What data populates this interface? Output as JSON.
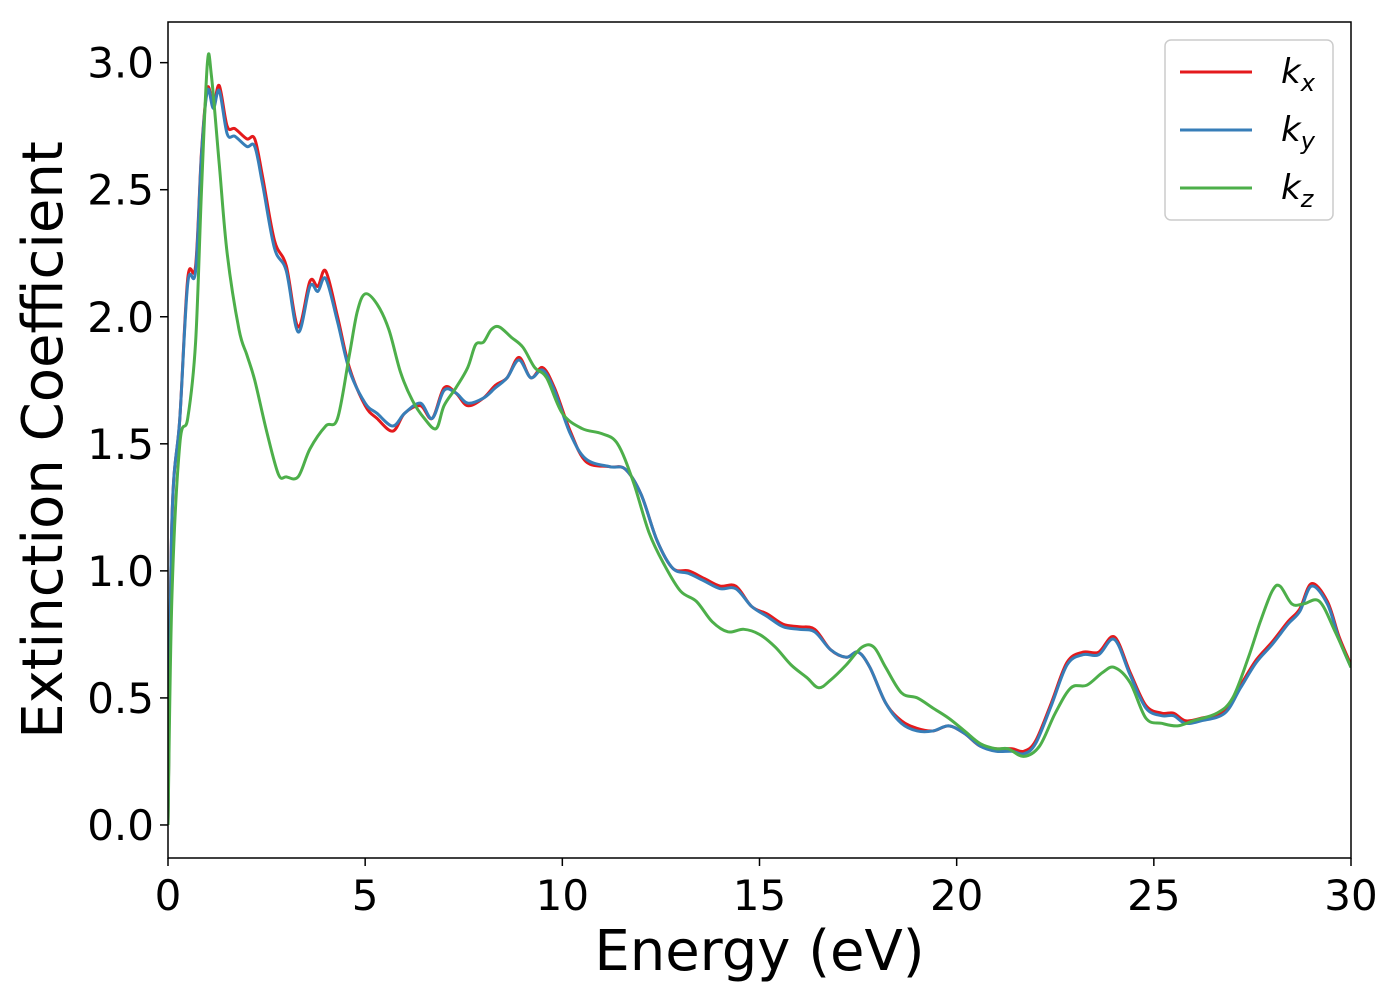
{
  "chart_data": {
    "type": "line",
    "title": "",
    "xlabel": "Energy (eV)",
    "ylabel": "Extinction Coefficient",
    "xlim": [
      0,
      30
    ],
    "ylim": [
      -0.13,
      3.16
    ],
    "xticks": [
      0,
      5,
      10,
      15,
      20,
      25,
      30
    ],
    "xtick_labels": [
      "0",
      "5",
      "10",
      "15",
      "20",
      "25",
      "30"
    ],
    "yticks": [
      0.0,
      0.5,
      1.0,
      1.5,
      2.0,
      2.5,
      3.0
    ],
    "ytick_labels": [
      "0.0",
      "0.5",
      "1.0",
      "1.5",
      "2.0",
      "2.5",
      "3.0"
    ],
    "grid": false,
    "legend_position": "top-right",
    "series": [
      {
        "name": "k",
        "subscript": "x",
        "color": "#e41a1c",
        "points": [
          [
            0,
            0
          ],
          [
            0.1,
            1.2
          ],
          [
            0.3,
            1.6
          ],
          [
            0.5,
            2.15
          ],
          [
            0.7,
            2.2
          ],
          [
            0.85,
            2.65
          ],
          [
            1.0,
            2.9
          ],
          [
            1.15,
            2.83
          ],
          [
            1.3,
            2.91
          ],
          [
            1.5,
            2.75
          ],
          [
            1.7,
            2.74
          ],
          [
            2.0,
            2.7
          ],
          [
            2.2,
            2.7
          ],
          [
            2.4,
            2.55
          ],
          [
            2.7,
            2.3
          ],
          [
            3.0,
            2.2
          ],
          [
            3.3,
            1.96
          ],
          [
            3.6,
            2.14
          ],
          [
            3.8,
            2.12
          ],
          [
            4.0,
            2.18
          ],
          [
            4.3,
            2.0
          ],
          [
            4.6,
            1.8
          ],
          [
            5.0,
            1.65
          ],
          [
            5.3,
            1.6
          ],
          [
            5.7,
            1.55
          ],
          [
            6.0,
            1.62
          ],
          [
            6.4,
            1.65
          ],
          [
            6.7,
            1.6
          ],
          [
            7.0,
            1.72
          ],
          [
            7.3,
            1.7
          ],
          [
            7.6,
            1.65
          ],
          [
            8.0,
            1.68
          ],
          [
            8.3,
            1.73
          ],
          [
            8.6,
            1.76
          ],
          [
            8.9,
            1.84
          ],
          [
            9.2,
            1.76
          ],
          [
            9.5,
            1.8
          ],
          [
            9.8,
            1.72
          ],
          [
            10.2,
            1.55
          ],
          [
            10.6,
            1.43
          ],
          [
            11.2,
            1.41
          ],
          [
            11.6,
            1.4
          ],
          [
            12.0,
            1.3
          ],
          [
            12.4,
            1.12
          ],
          [
            12.8,
            1.01
          ],
          [
            13.2,
            1.0
          ],
          [
            13.6,
            0.97
          ],
          [
            14.0,
            0.94
          ],
          [
            14.4,
            0.94
          ],
          [
            14.8,
            0.86
          ],
          [
            15.2,
            0.83
          ],
          [
            15.6,
            0.79
          ],
          [
            16.0,
            0.78
          ],
          [
            16.4,
            0.77
          ],
          [
            16.8,
            0.69
          ],
          [
            17.2,
            0.66
          ],
          [
            17.5,
            0.68
          ],
          [
            17.8,
            0.62
          ],
          [
            18.2,
            0.48
          ],
          [
            18.6,
            0.41
          ],
          [
            19.0,
            0.38
          ],
          [
            19.4,
            0.37
          ],
          [
            19.8,
            0.39
          ],
          [
            20.2,
            0.36
          ],
          [
            20.6,
            0.31
          ],
          [
            21.0,
            0.3
          ],
          [
            21.4,
            0.3
          ],
          [
            21.7,
            0.29
          ],
          [
            22.0,
            0.33
          ],
          [
            22.4,
            0.48
          ],
          [
            22.8,
            0.64
          ],
          [
            23.2,
            0.68
          ],
          [
            23.6,
            0.68
          ],
          [
            24.0,
            0.74
          ],
          [
            24.4,
            0.6
          ],
          [
            24.8,
            0.47
          ],
          [
            25.2,
            0.44
          ],
          [
            25.5,
            0.44
          ],
          [
            25.8,
            0.41
          ],
          [
            26.2,
            0.42
          ],
          [
            26.8,
            0.45
          ],
          [
            27.2,
            0.55
          ],
          [
            27.6,
            0.65
          ],
          [
            28.0,
            0.72
          ],
          [
            28.4,
            0.8
          ],
          [
            28.7,
            0.85
          ],
          [
            29.0,
            0.95
          ],
          [
            29.4,
            0.88
          ],
          [
            29.7,
            0.74
          ],
          [
            30.0,
            0.63
          ]
        ]
      },
      {
        "name": "k",
        "subscript": "y",
        "color": "#377eb8",
        "points": [
          [
            0,
            0
          ],
          [
            0.1,
            1.2
          ],
          [
            0.3,
            1.6
          ],
          [
            0.5,
            2.13
          ],
          [
            0.7,
            2.18
          ],
          [
            0.85,
            2.64
          ],
          [
            1.0,
            2.89
          ],
          [
            1.15,
            2.82
          ],
          [
            1.3,
            2.89
          ],
          [
            1.5,
            2.72
          ],
          [
            1.7,
            2.71
          ],
          [
            2.0,
            2.67
          ],
          [
            2.2,
            2.67
          ],
          [
            2.4,
            2.52
          ],
          [
            2.7,
            2.27
          ],
          [
            3.0,
            2.18
          ],
          [
            3.3,
            1.94
          ],
          [
            3.6,
            2.12
          ],
          [
            3.8,
            2.1
          ],
          [
            4.0,
            2.15
          ],
          [
            4.3,
            1.98
          ],
          [
            4.6,
            1.79
          ],
          [
            5.0,
            1.66
          ],
          [
            5.3,
            1.62
          ],
          [
            5.7,
            1.57
          ],
          [
            6.0,
            1.62
          ],
          [
            6.4,
            1.66
          ],
          [
            6.7,
            1.6
          ],
          [
            7.0,
            1.71
          ],
          [
            7.3,
            1.7
          ],
          [
            7.6,
            1.66
          ],
          [
            8.0,
            1.68
          ],
          [
            8.3,
            1.72
          ],
          [
            8.6,
            1.76
          ],
          [
            8.9,
            1.83
          ],
          [
            9.2,
            1.76
          ],
          [
            9.5,
            1.79
          ],
          [
            9.8,
            1.71
          ],
          [
            10.2,
            1.54
          ],
          [
            10.6,
            1.44
          ],
          [
            11.2,
            1.41
          ],
          [
            11.6,
            1.4
          ],
          [
            12.0,
            1.3
          ],
          [
            12.4,
            1.12
          ],
          [
            12.8,
            1.01
          ],
          [
            13.2,
            0.99
          ],
          [
            13.6,
            0.96
          ],
          [
            14.0,
            0.93
          ],
          [
            14.4,
            0.93
          ],
          [
            14.8,
            0.86
          ],
          [
            15.2,
            0.82
          ],
          [
            15.6,
            0.78
          ],
          [
            16.0,
            0.77
          ],
          [
            16.4,
            0.76
          ],
          [
            16.8,
            0.69
          ],
          [
            17.2,
            0.66
          ],
          [
            17.5,
            0.68
          ],
          [
            17.8,
            0.62
          ],
          [
            18.2,
            0.48
          ],
          [
            18.6,
            0.4
          ],
          [
            19.0,
            0.37
          ],
          [
            19.4,
            0.37
          ],
          [
            19.8,
            0.39
          ],
          [
            20.2,
            0.36
          ],
          [
            20.6,
            0.31
          ],
          [
            21.0,
            0.29
          ],
          [
            21.4,
            0.29
          ],
          [
            21.7,
            0.28
          ],
          [
            22.0,
            0.32
          ],
          [
            22.4,
            0.47
          ],
          [
            22.8,
            0.63
          ],
          [
            23.2,
            0.67
          ],
          [
            23.6,
            0.67
          ],
          [
            24.0,
            0.73
          ],
          [
            24.4,
            0.59
          ],
          [
            24.8,
            0.46
          ],
          [
            25.2,
            0.43
          ],
          [
            25.5,
            0.43
          ],
          [
            25.8,
            0.4
          ],
          [
            26.2,
            0.41
          ],
          [
            26.8,
            0.44
          ],
          [
            27.2,
            0.54
          ],
          [
            27.6,
            0.64
          ],
          [
            28.0,
            0.71
          ],
          [
            28.4,
            0.79
          ],
          [
            28.7,
            0.84
          ],
          [
            29.0,
            0.94
          ],
          [
            29.4,
            0.87
          ],
          [
            29.7,
            0.73
          ],
          [
            30.0,
            0.62
          ]
        ]
      },
      {
        "name": "k",
        "subscript": "z",
        "color": "#4daf4a",
        "points": [
          [
            0,
            0
          ],
          [
            0.1,
            0.9
          ],
          [
            0.3,
            1.5
          ],
          [
            0.5,
            1.6
          ],
          [
            0.7,
            1.9
          ],
          [
            0.85,
            2.5
          ],
          [
            1.0,
            3.0
          ],
          [
            1.1,
            2.95
          ],
          [
            1.3,
            2.6
          ],
          [
            1.5,
            2.25
          ],
          [
            1.8,
            1.95
          ],
          [
            2.0,
            1.85
          ],
          [
            2.2,
            1.75
          ],
          [
            2.5,
            1.55
          ],
          [
            2.8,
            1.38
          ],
          [
            3.0,
            1.37
          ],
          [
            3.3,
            1.37
          ],
          [
            3.6,
            1.48
          ],
          [
            4.0,
            1.57
          ],
          [
            4.3,
            1.6
          ],
          [
            4.6,
            1.85
          ],
          [
            4.8,
            2.02
          ],
          [
            5.0,
            2.09
          ],
          [
            5.3,
            2.05
          ],
          [
            5.6,
            1.95
          ],
          [
            5.9,
            1.78
          ],
          [
            6.2,
            1.67
          ],
          [
            6.5,
            1.6
          ],
          [
            6.8,
            1.56
          ],
          [
            7.0,
            1.65
          ],
          [
            7.3,
            1.72
          ],
          [
            7.6,
            1.8
          ],
          [
            7.8,
            1.89
          ],
          [
            8.0,
            1.9
          ],
          [
            8.2,
            1.95
          ],
          [
            8.4,
            1.96
          ],
          [
            8.7,
            1.92
          ],
          [
            9.0,
            1.88
          ],
          [
            9.3,
            1.8
          ],
          [
            9.6,
            1.76
          ],
          [
            10.0,
            1.62
          ],
          [
            10.5,
            1.56
          ],
          [
            11.0,
            1.54
          ],
          [
            11.4,
            1.5
          ],
          [
            11.8,
            1.35
          ],
          [
            12.2,
            1.15
          ],
          [
            12.6,
            1.02
          ],
          [
            13.0,
            0.92
          ],
          [
            13.4,
            0.88
          ],
          [
            13.8,
            0.8
          ],
          [
            14.2,
            0.76
          ],
          [
            14.6,
            0.77
          ],
          [
            15.0,
            0.75
          ],
          [
            15.4,
            0.7
          ],
          [
            15.8,
            0.63
          ],
          [
            16.2,
            0.58
          ],
          [
            16.5,
            0.54
          ],
          [
            16.8,
            0.57
          ],
          [
            17.2,
            0.63
          ],
          [
            17.6,
            0.7
          ],
          [
            17.9,
            0.7
          ],
          [
            18.2,
            0.62
          ],
          [
            18.6,
            0.52
          ],
          [
            19.0,
            0.5
          ],
          [
            19.4,
            0.46
          ],
          [
            19.8,
            0.42
          ],
          [
            20.2,
            0.37
          ],
          [
            20.6,
            0.32
          ],
          [
            21.0,
            0.3
          ],
          [
            21.3,
            0.3
          ],
          [
            21.7,
            0.27
          ],
          [
            22.1,
            0.31
          ],
          [
            22.5,
            0.44
          ],
          [
            22.9,
            0.54
          ],
          [
            23.3,
            0.55
          ],
          [
            23.7,
            0.6
          ],
          [
            24.0,
            0.62
          ],
          [
            24.4,
            0.56
          ],
          [
            24.8,
            0.42
          ],
          [
            25.2,
            0.4
          ],
          [
            25.6,
            0.39
          ],
          [
            26.0,
            0.41
          ],
          [
            26.6,
            0.44
          ],
          [
            27.0,
            0.5
          ],
          [
            27.4,
            0.66
          ],
          [
            27.7,
            0.8
          ],
          [
            28.0,
            0.92
          ],
          [
            28.2,
            0.94
          ],
          [
            28.5,
            0.87
          ],
          [
            28.8,
            0.87
          ],
          [
            29.2,
            0.88
          ],
          [
            29.6,
            0.76
          ],
          [
            30.0,
            0.62
          ]
        ]
      }
    ]
  }
}
